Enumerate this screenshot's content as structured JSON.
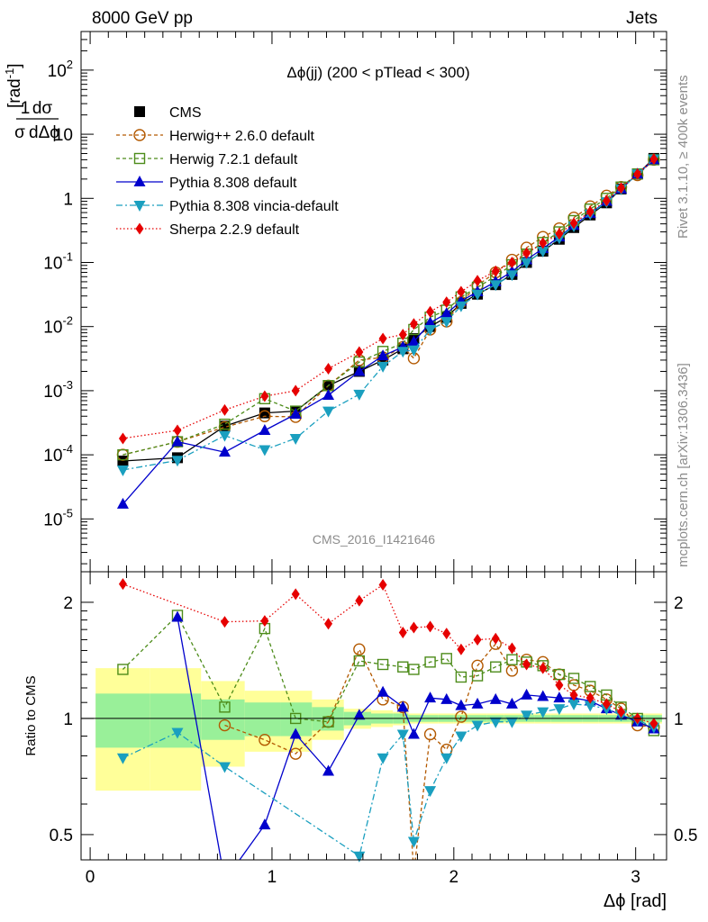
{
  "header": {
    "energy": "8000 GeV pp",
    "category": "Jets",
    "plot_title": "Δϕ(jj) (200 < pTlead <  300)",
    "analysis_id": "CMS_2016_I1421646",
    "rivet_label": "Rivet 3.1.10, ≥ 400k events",
    "source_label": "mcplots.cern.ch [arXiv:1306.3436]"
  },
  "colors": {
    "CMS": "#000000",
    "Herwig++": "#b35900",
    "Herwig7": "#4d8c1a",
    "Pythia": "#0000cc",
    "Vincia": "#1a9fbf",
    "Sherpa": "#e60000",
    "band_inner": "#99f099",
    "band_outer": "#ffff99"
  },
  "chart_data": [
    {
      "panel": "main",
      "type": "line",
      "yscale": "log",
      "ylabel": "1/σ dσ/dΔϕ [rad^-1]",
      "xlim": [
        -0.05,
        3.17
      ],
      "ylim": [
        1.5e-06,
        400
      ],
      "x_ticks": [
        0,
        1,
        2,
        3
      ],
      "y_tick_labels": [
        {
          "value": 1e-05,
          "label": "10^-5"
        },
        {
          "value": 0.0001,
          "label": "10^-4"
        },
        {
          "value": 0.001,
          "label": "10^-3"
        },
        {
          "value": 0.01,
          "label": "10^-2"
        },
        {
          "value": 0.1,
          "label": "10^-1"
        },
        {
          "value": 1,
          "label": "1"
        },
        {
          "value": 10,
          "label": "10"
        },
        {
          "value": 100,
          "label": "10^2"
        }
      ],
      "x": [
        0.18,
        0.48,
        0.74,
        0.96,
        1.13,
        1.31,
        1.48,
        1.61,
        1.72,
        1.78,
        1.87,
        1.96,
        2.04,
        2.13,
        2.23,
        2.32,
        2.4,
        2.49,
        2.58,
        2.66,
        2.75,
        2.84,
        2.92,
        3.01,
        3.1
      ],
      "series": [
        {
          "name": "CMS",
          "key": "CMS",
          "marker": "square-filled",
          "dash": "none",
          "values": [
            8e-05,
            9e-05,
            0.00028,
            0.00045,
            0.00048,
            0.0012,
            0.002,
            0.003,
            0.0045,
            0.0065,
            0.01,
            0.014,
            0.023,
            0.032,
            0.045,
            0.065,
            0.1,
            0.15,
            0.23,
            0.35,
            0.55,
            0.85,
            1.4,
            2.4,
            4.2
          ]
        },
        {
          "name": "Herwig++ 2.6.0 default",
          "key": "Herwig++",
          "marker": "circle-open",
          "dash": "4,3",
          "values": [
            0.0001,
            0.00016,
            0.00027,
            0.0004,
            0.00039,
            0.0012,
            0.003,
            0.0033,
            0.0048,
            0.0032,
            0.009,
            0.012,
            0.024,
            0.044,
            0.07,
            0.11,
            0.17,
            0.25,
            0.34,
            0.5,
            0.75,
            1.1,
            1.5,
            2.3,
            4.0
          ]
        },
        {
          "name": "Herwig 7.2.1 default",
          "key": "Herwig7",
          "marker": "square-open",
          "dash": "4,3",
          "values": [
            0.0001,
            0.00016,
            0.0003,
            0.00075,
            0.00048,
            0.0012,
            0.0028,
            0.0041,
            0.0055,
            0.009,
            0.014,
            0.018,
            0.029,
            0.041,
            0.061,
            0.092,
            0.135,
            0.205,
            0.3,
            0.45,
            0.68,
            1.0,
            1.5,
            2.4,
            4.0
          ]
        },
        {
          "name": "Pythia 8.308 default",
          "key": "Pythia",
          "marker": "triangle-up",
          "dash": "none",
          "values": [
            1.7e-05,
            0.00016,
            0.00011,
            0.00024,
            0.00043,
            0.00085,
            0.002,
            0.0035,
            0.0048,
            0.0058,
            0.0115,
            0.016,
            0.025,
            0.035,
            0.05,
            0.072,
            0.11,
            0.165,
            0.25,
            0.38,
            0.58,
            0.9,
            1.4,
            2.4,
            4.0
          ]
        },
        {
          "name": "Pythia 8.308 vincia-default",
          "key": "Vincia",
          "marker": "triangle-down",
          "dash": "7,3,2,3",
          "values": [
            5.8e-05,
            8.2e-05,
            0.0002,
            0.00012,
            0.00018,
            0.00048,
            0.00088,
            0.0024,
            0.0041,
            0.0043,
            0.009,
            0.012,
            0.021,
            0.032,
            0.045,
            0.064,
            0.1,
            0.15,
            0.24,
            0.37,
            0.57,
            0.88,
            1.4,
            2.4,
            4.1
          ]
        },
        {
          "name": "Sherpa 2.2.9 default",
          "key": "Sherpa",
          "marker": "diamond",
          "dash": "1.5,2.5",
          "values": [
            0.00018,
            0.00024,
            0.0005,
            0.00082,
            0.001,
            0.0022,
            0.004,
            0.0065,
            0.0075,
            0.011,
            0.017,
            0.024,
            0.035,
            0.052,
            0.073,
            0.1,
            0.14,
            0.2,
            0.28,
            0.41,
            0.62,
            0.92,
            1.45,
            2.4,
            4.1
          ]
        }
      ]
    },
    {
      "panel": "ratio",
      "type": "line",
      "yscale": "log",
      "ylabel": "Ratio to CMS",
      "xlabel": "Δϕ [rad]",
      "xlim": [
        -0.05,
        3.17
      ],
      "ylim": [
        0.43,
        2.4
      ],
      "x_ticks": [
        0,
        1,
        2,
        3
      ],
      "x_tick_labels": [
        "0",
        "1",
        "2",
        "3"
      ],
      "y_ticks": [
        0.5,
        1,
        2
      ],
      "y_tick_labels": [
        "0.5",
        "1",
        "2"
      ],
      "x": [
        0.18,
        0.48,
        0.74,
        0.96,
        1.13,
        1.31,
        1.48,
        1.61,
        1.72,
        1.78,
        1.87,
        1.96,
        2.04,
        2.13,
        2.23,
        2.32,
        2.4,
        2.49,
        2.58,
        2.66,
        2.75,
        2.84,
        2.92,
        3.01,
        3.1
      ],
      "band_inner": [
        0.16,
        0.16,
        0.12,
        0.1,
        0.1,
        0.07,
        0.04,
        0.03,
        0.03,
        0.02,
        0.02,
        0.02,
        0.02,
        0.02,
        0.02,
        0.02,
        0.02,
        0.02,
        0.02,
        0.02,
        0.02,
        0.02,
        0.02,
        0.02,
        0.02
      ],
      "band_outer": [
        0.35,
        0.35,
        0.25,
        0.18,
        0.18,
        0.12,
        0.06,
        0.05,
        0.04,
        0.03,
        0.03,
        0.03,
        0.03,
        0.03,
        0.03,
        0.03,
        0.03,
        0.03,
        0.03,
        0.03,
        0.03,
        0.03,
        0.03,
        0.03,
        0.03
      ],
      "series": [
        {
          "name": "Herwig++ 2.6.0 default",
          "key": "Herwig++",
          "marker": "circle-open",
          "dash": "4,3",
          "values": [
            null,
            null,
            0.96,
            0.88,
            0.81,
            0.98,
            1.51,
            1.12,
            1.07,
            0.4,
            0.91,
            0.83,
            1.01,
            1.37,
            1.56,
            1.33,
            1.42,
            1.4,
            1.3,
            1.22,
            1.18,
            1.12,
            1.06,
            0.96,
            0.95
          ]
        },
        {
          "name": "Herwig 7.2.1 default",
          "key": "Herwig7",
          "marker": "square-open",
          "dash": "4,3",
          "values": [
            1.34,
            1.85,
            1.07,
            1.71,
            1.0,
            0.98,
            1.41,
            1.38,
            1.36,
            1.34,
            1.4,
            1.43,
            1.28,
            1.29,
            1.36,
            1.42,
            1.4,
            1.37,
            1.3,
            1.27,
            1.21,
            1.15,
            1.07,
            1.0,
            0.93
          ]
        },
        {
          "name": "Pythia 8.308 default",
          "key": "Pythia",
          "marker": "triangle-up",
          "dash": "none",
          "values": [
            null,
            1.83,
            0.38,
            0.53,
            0.91,
            0.73,
            1.02,
            1.17,
            1.07,
            0.91,
            1.13,
            1.12,
            1.08,
            1.09,
            1.12,
            1.09,
            1.15,
            1.14,
            1.13,
            1.13,
            1.11,
            1.06,
            1.02,
            0.98,
            0.94
          ]
        },
        {
          "name": "Pythia 8.308 vincia-default",
          "key": "Vincia",
          "marker": "triangle-down",
          "dash": "7,3,2,3",
          "values": [
            0.79,
            0.92,
            0.75,
            null,
            null,
            null,
            0.44,
            0.79,
            0.91,
            0.48,
            0.65,
            0.79,
            0.9,
            0.96,
            0.98,
            0.98,
            1.02,
            1.04,
            1.06,
            1.09,
            1.08,
            1.06,
            1.02,
            0.99,
            0.95
          ]
        },
        {
          "name": "Sherpa 2.2.9 default",
          "key": "Sherpa",
          "marker": "diamond",
          "dash": "1.5,2.5",
          "values": [
            2.23,
            null,
            1.78,
            1.79,
            2.1,
            1.76,
            2.02,
            2.22,
            1.67,
            1.72,
            1.73,
            1.66,
            1.51,
            1.6,
            1.61,
            1.52,
            1.38,
            1.35,
            1.22,
            1.15,
            1.13,
            1.09,
            1.04,
            1.0,
            0.97
          ]
        }
      ]
    }
  ]
}
